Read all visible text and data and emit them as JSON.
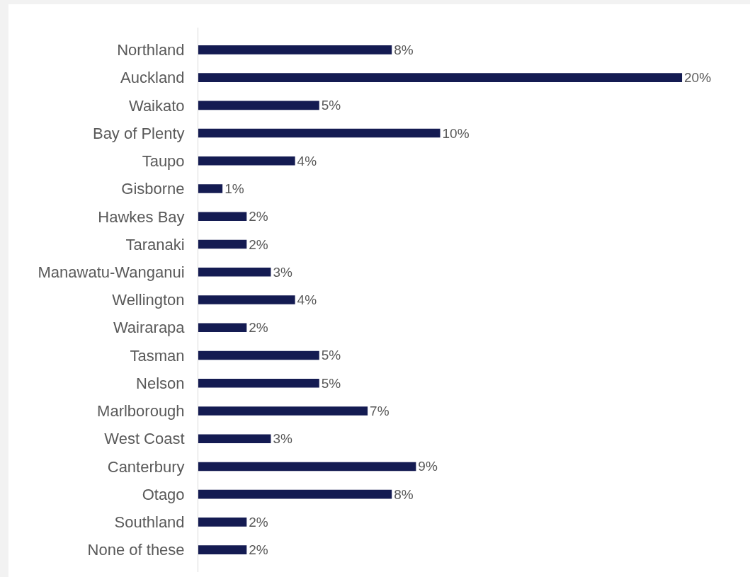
{
  "chart_data": {
    "type": "bar",
    "orientation": "horizontal",
    "categories": [
      "Northland",
      "Auckland",
      "Waikato",
      "Bay of Plenty",
      "Taupo",
      "Gisborne",
      "Hawkes Bay",
      "Taranaki",
      "Manawatu-Wanganui",
      "Wellington",
      "Wairarapa",
      "Tasman",
      "Nelson",
      "Marlborough",
      "West Coast",
      "Canterbury",
      "Otago",
      "Southland",
      "None of these"
    ],
    "values": [
      8,
      20,
      5,
      10,
      4,
      1,
      2,
      2,
      3,
      4,
      2,
      5,
      5,
      7,
      3,
      9,
      8,
      2,
      2
    ],
    "value_labels": [
      "8%",
      "20%",
      "5%",
      "10%",
      "4%",
      "1%",
      "2%",
      "2%",
      "3%",
      "4%",
      "2%",
      "5%",
      "5%",
      "7%",
      "3%",
      "9%",
      "8%",
      "2%",
      "2%"
    ],
    "color": "#141b52"
  }
}
